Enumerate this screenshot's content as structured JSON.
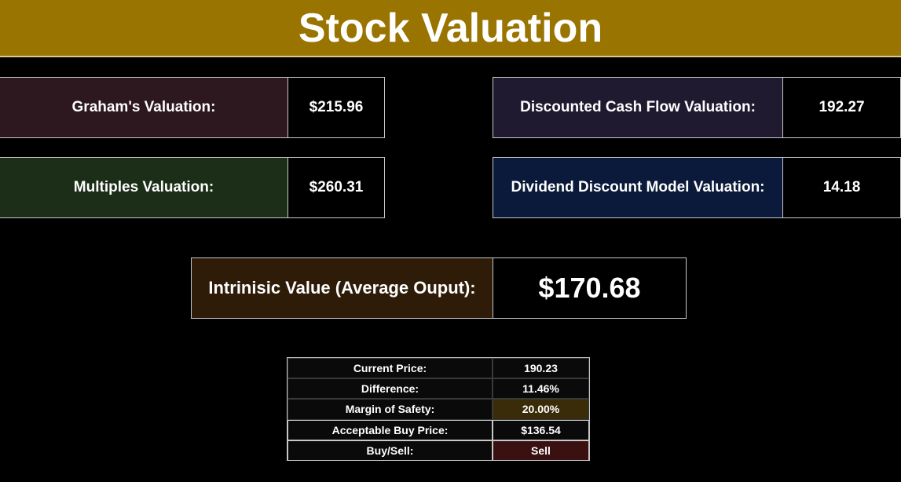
{
  "header": {
    "title": "Stock Valuation"
  },
  "valuations": [
    {
      "label": "Graham's Valuation:",
      "value": "$215.96"
    },
    {
      "label": "Multiples Valuation:",
      "value": "$260.31"
    },
    {
      "label": "Discounted Cash Flow Valuation:",
      "value": "192.27"
    },
    {
      "label": "Dividend Discount Model Valuation:",
      "value": "14.18"
    }
  ],
  "intrinsic": {
    "label": "Intrinisic Value (Average Ouput):",
    "value": "$170.68"
  },
  "table": {
    "rows": [
      [
        "Current Price:",
        "190.23"
      ],
      [
        "Difference:",
        "11.46%"
      ],
      [
        "Margin of Safety:",
        "20.00%"
      ],
      [
        "Acceptable Buy Price:",
        "$136.54"
      ],
      [
        "Buy/Sell:",
        "Sell"
      ]
    ]
  }
}
